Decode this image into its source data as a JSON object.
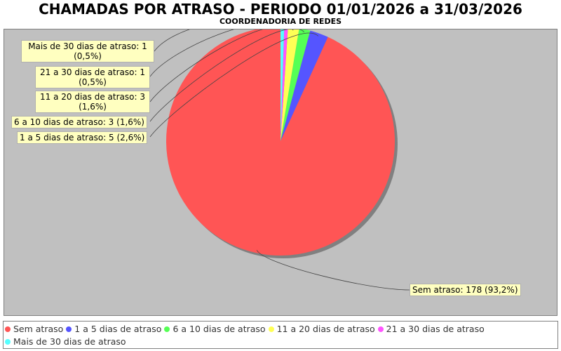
{
  "chart_data": {
    "type": "pie",
    "title": "CHAMADAS POR ATRASO - PERIODO 01/01/2026 a 31/03/2026",
    "subtitle": "COORDENADORIA DE REDES",
    "slices": [
      {
        "label": "Sem atraso",
        "value": 178,
        "percent": "93,2%",
        "color": "#ff5555",
        "callout": "Sem atraso: 178 (93,2%)"
      },
      {
        "label": "1 a 5 dias de atraso",
        "value": 5,
        "percent": "2,6%",
        "color": "#5555ff",
        "callout": "1 a 5 dias de atraso: 5 (2,6%)"
      },
      {
        "label": "6 a 10 dias de atraso",
        "value": 3,
        "percent": "1,6%",
        "color": "#55ff55",
        "callout": "6 a 10 dias de atraso: 3 (1,6%)"
      },
      {
        "label": "11 a 20 dias de atraso",
        "value": 3,
        "percent": "1,6%",
        "color": "#ffff55",
        "callout": "11 a 20 dias de atraso: 3 (1,6%)"
      },
      {
        "label": "21 a 30 dias de atraso",
        "value": 1,
        "percent": "0,5%",
        "color": "#ff55ff",
        "callout": "21 a 30 dias de atraso: 1 (0,5%)"
      },
      {
        "label": "Mais de 30 dias de atraso",
        "value": 1,
        "percent": "0,5%",
        "color": "#55ffff",
        "callout": "Mais de 30 dias de atraso: 1 (0,5%)"
      }
    ],
    "legend_position": "bottom"
  }
}
